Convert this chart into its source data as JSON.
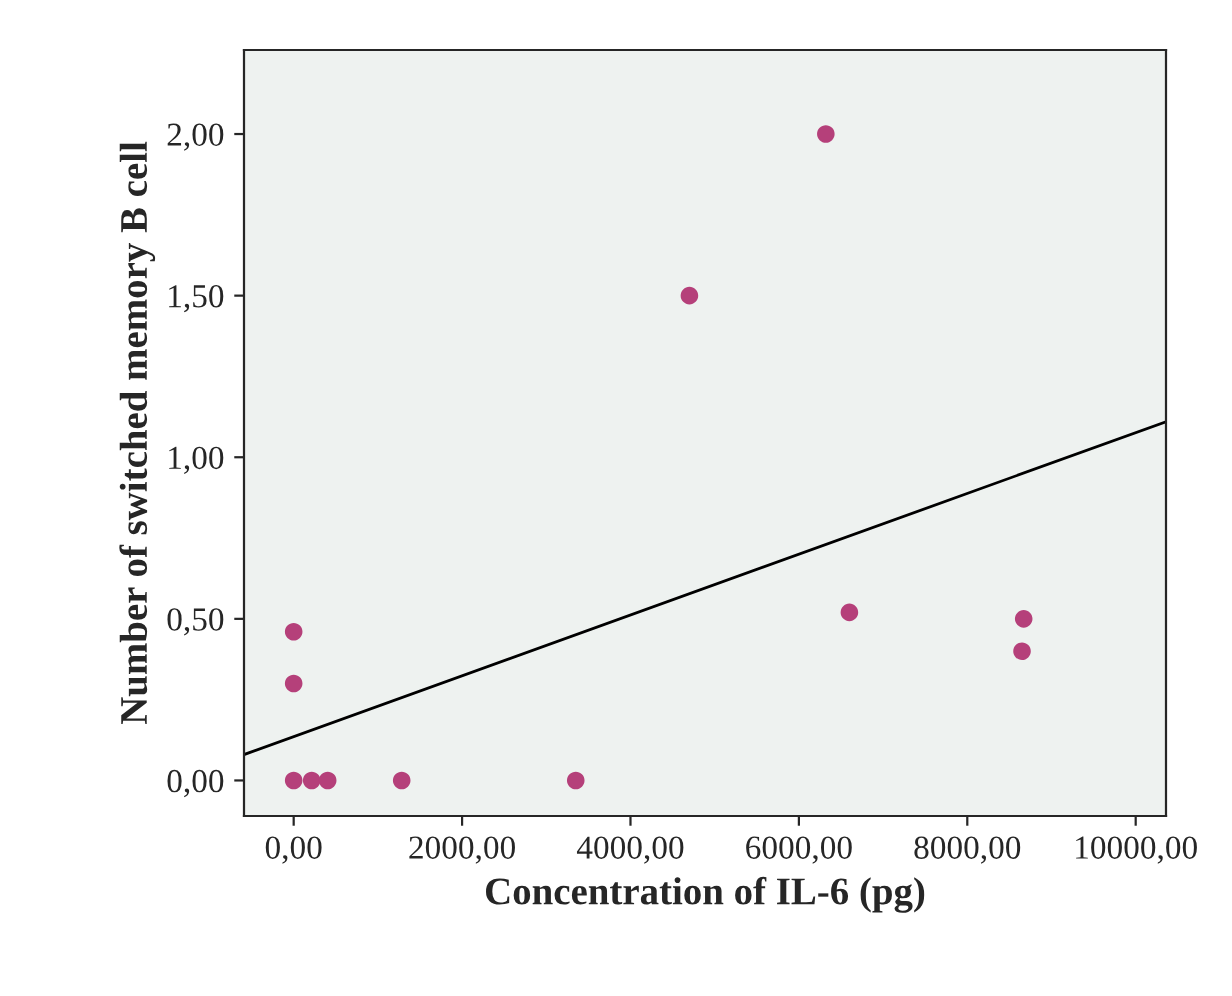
{
  "chart_data": {
    "type": "scatter",
    "xlabel": "Concentration of IL-6 (pg)",
    "ylabel": "Number of switched memory B cell",
    "x": [
      0,
      0,
      0,
      214,
      404,
      1283,
      3350,
      4700,
      6320,
      6600,
      8670,
      8650
    ],
    "series": [
      {
        "color": "#b5407a",
        "values": [
          0,
          0.46,
          0.3,
          0,
          0,
          0,
          0,
          1.5,
          2.0,
          0.52,
          0.5,
          0.4
        ]
      },
      {
        "type": "line",
        "color": "#000000",
        "x": [
          -590,
          10360
        ],
        "values": [
          0.08,
          1.11
        ]
      }
    ],
    "xlim": [
      -590,
      10360
    ],
    "ylim": [
      -0.11,
      2.26
    ],
    "xticks": [
      {
        "value": 0,
        "label": "0,00"
      },
      {
        "value": 2000,
        "label": "2000,00"
      },
      {
        "value": 4000,
        "label": "4000,00"
      },
      {
        "value": 6000,
        "label": "6000,00"
      },
      {
        "value": 8000,
        "label": "8000,00"
      },
      {
        "value": 10000,
        "label": "10000,00"
      }
    ],
    "yticks": [
      {
        "value": 0,
        "label": "0,00"
      },
      {
        "value": 0.5,
        "label": "0,50"
      },
      {
        "value": 1,
        "label": "1,00"
      },
      {
        "value": 1.5,
        "label": "1,50"
      },
      {
        "value": 2,
        "label": "2,00"
      }
    ],
    "grid": false,
    "legend": false
  }
}
